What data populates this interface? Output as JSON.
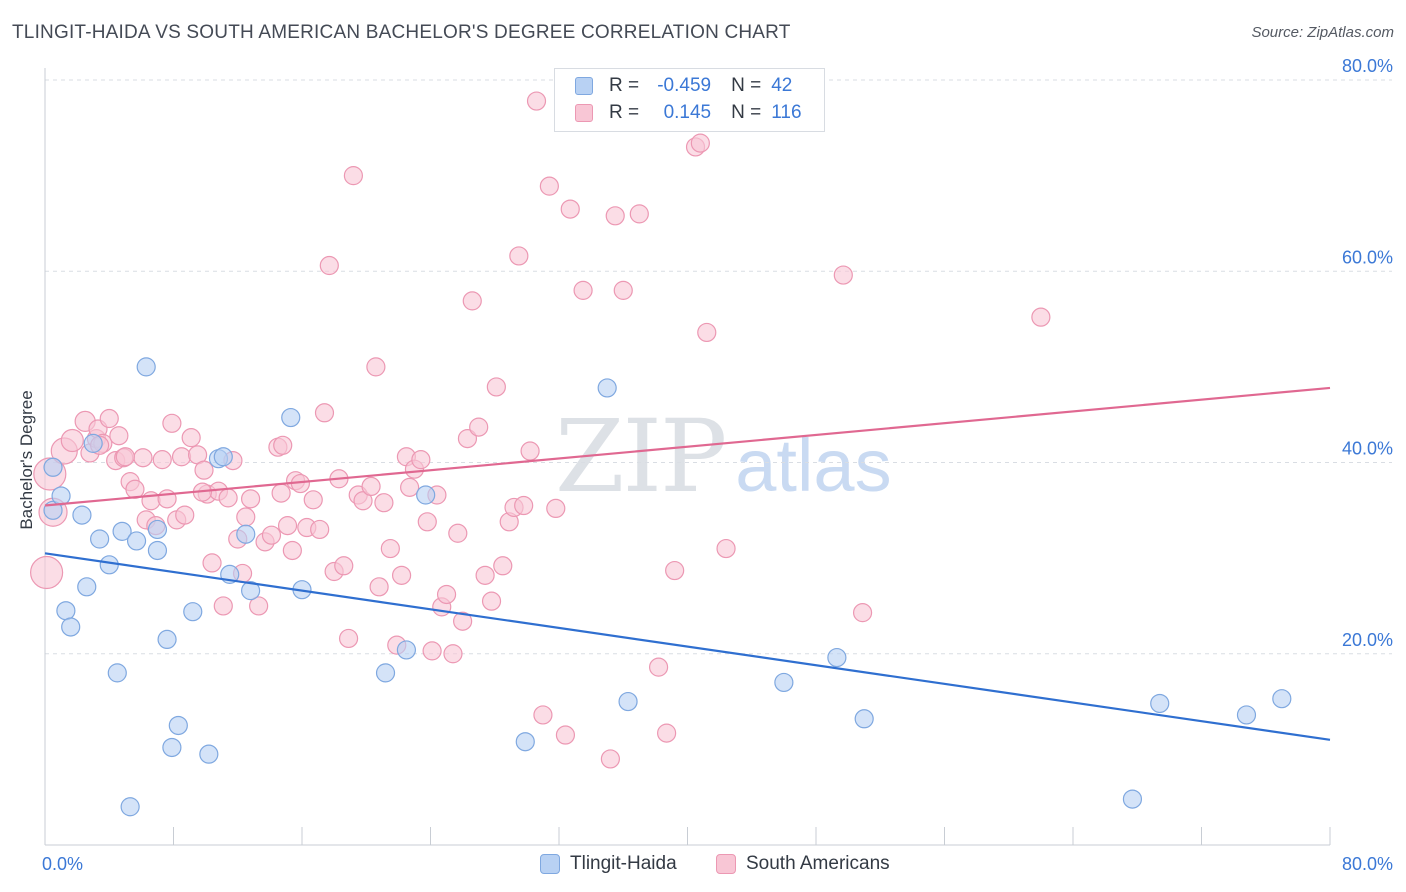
{
  "title": "TLINGIT-HAIDA VS SOUTH AMERICAN BACHELOR'S DEGREE CORRELATION CHART",
  "source": "Source: ZipAtlas.com",
  "watermark": {
    "zip": "ZIP",
    "atlas": "atlas"
  },
  "legend": {
    "r_label": "R =",
    "n_label": "N =",
    "rows": [
      {
        "r": "-0.459",
        "n": "42"
      },
      {
        "r": "0.145",
        "n": "116"
      }
    ]
  },
  "bottom_legend": [
    "Tlingit-Haida",
    "South Americans"
  ],
  "colors": {
    "blue_fill": "#b8d1f3",
    "blue_stroke": "#7fa8e0",
    "blue_line": "#2f6fd0",
    "pink_fill": "#f8c6d5",
    "pink_stroke": "#ec98b3",
    "pink_line": "#e06891",
    "axis_text": "#3b78d6",
    "grid": "#d9dde3"
  },
  "chart_data": {
    "type": "scatter",
    "title": "TLINGIT-HAIDA VS SOUTH AMERICAN BACHELOR'S DEGREE CORRELATION CHART",
    "ylabel": "Bachelor's Degree",
    "xlabel": "",
    "xlim": [
      0,
      80
    ],
    "ylim": [
      0,
      80
    ],
    "x_tick_labels": [
      "0.0%",
      "80.0%"
    ],
    "y_tick_labels": [
      "20.0%",
      "40.0%",
      "60.0%",
      "80.0%"
    ],
    "y_ticks": [
      20,
      40,
      60,
      80
    ],
    "grid": true,
    "series": [
      {
        "name": "Tlingit-Haida",
        "color": "#b8d1f3",
        "trend": {
          "x": [
            0,
            80
          ],
          "y": [
            30.5,
            11.0
          ]
        },
        "points": [
          [
            0.5,
            39.5,
            9
          ],
          [
            0.5,
            35.0,
            9
          ],
          [
            1.0,
            36.5,
            9
          ],
          [
            1.3,
            24.5,
            9
          ],
          [
            1.6,
            22.8,
            9
          ],
          [
            2.3,
            34.5,
            9
          ],
          [
            2.6,
            27.0,
            9
          ],
          [
            3.0,
            42.0,
            9
          ],
          [
            3.4,
            32.0,
            9
          ],
          [
            4.0,
            29.3,
            9
          ],
          [
            4.5,
            18.0,
            9
          ],
          [
            4.8,
            32.8,
            9
          ],
          [
            5.3,
            4.0,
            9
          ],
          [
            5.7,
            31.8,
            9
          ],
          [
            6.3,
            50.0,
            9
          ],
          [
            7.0,
            30.8,
            9
          ],
          [
            7.0,
            33.0,
            9
          ],
          [
            7.6,
            21.5,
            9
          ],
          [
            7.9,
            10.2,
            9
          ],
          [
            8.3,
            12.5,
            9
          ],
          [
            9.2,
            24.4,
            9
          ],
          [
            10.2,
            9.5,
            9
          ],
          [
            10.8,
            40.4,
            9
          ],
          [
            11.1,
            40.6,
            9
          ],
          [
            11.5,
            28.3,
            9
          ],
          [
            12.5,
            32.5,
            9
          ],
          [
            12.8,
            26.6,
            9
          ],
          [
            15.3,
            44.7,
            9
          ],
          [
            16.0,
            26.7,
            9
          ],
          [
            21.2,
            18.0,
            9
          ],
          [
            22.5,
            20.4,
            9
          ],
          [
            23.7,
            36.6,
            9
          ],
          [
            29.9,
            10.8,
            9
          ],
          [
            35.0,
            47.8,
            9
          ],
          [
            36.3,
            15.0,
            9
          ],
          [
            46.0,
            17.0,
            9
          ],
          [
            49.3,
            19.6,
            9
          ],
          [
            51.0,
            13.2,
            9
          ],
          [
            67.7,
            4.8,
            9
          ],
          [
            69.4,
            14.8,
            9
          ],
          [
            74.8,
            13.6,
            9
          ],
          [
            77.0,
            15.3,
            9
          ]
        ]
      },
      {
        "name": "South Americans",
        "color": "#f8c6d5",
        "trend": {
          "x": [
            0,
            80
          ],
          "y": [
            35.5,
            47.8
          ]
        },
        "points": [
          [
            0.1,
            28.5,
            16
          ],
          [
            0.3,
            38.8,
            16
          ],
          [
            0.5,
            34.8,
            14
          ],
          [
            1.2,
            41.2,
            13
          ],
          [
            1.7,
            42.3,
            11
          ],
          [
            2.5,
            44.3,
            10
          ],
          [
            2.8,
            41.0,
            9
          ],
          [
            3.2,
            42.5,
            9
          ],
          [
            3.3,
            43.5,
            9
          ],
          [
            3.6,
            42.0,
            9
          ],
          [
            4.0,
            44.6,
            9
          ],
          [
            4.4,
            40.2,
            9
          ],
          [
            4.6,
            42.8,
            9
          ],
          [
            4.9,
            40.5,
            9
          ],
          [
            5.3,
            38.0,
            9
          ],
          [
            5.6,
            37.2,
            9
          ],
          [
            6.1,
            40.5,
            9
          ],
          [
            6.3,
            34.0,
            9
          ],
          [
            6.6,
            36.0,
            9
          ],
          [
            6.9,
            33.4,
            9
          ],
          [
            7.3,
            40.3,
            9
          ],
          [
            7.6,
            36.2,
            9
          ],
          [
            7.9,
            44.1,
            9
          ],
          [
            8.2,
            34.0,
            9
          ],
          [
            8.5,
            40.6,
            9
          ],
          [
            8.7,
            34.5,
            9
          ],
          [
            9.1,
            42.6,
            9
          ],
          [
            9.5,
            40.8,
            9
          ],
          [
            9.9,
            39.2,
            9
          ],
          [
            10.1,
            36.7,
            9
          ],
          [
            10.4,
            29.5,
            9
          ],
          [
            10.8,
            37.0,
            9
          ],
          [
            11.1,
            25.0,
            9
          ],
          [
            11.4,
            36.3,
            9
          ],
          [
            11.7,
            40.2,
            9
          ],
          [
            12.0,
            32.0,
            9
          ],
          [
            12.3,
            28.4,
            9
          ],
          [
            12.5,
            34.3,
            9
          ],
          [
            12.8,
            36.2,
            9
          ],
          [
            13.3,
            25.0,
            9
          ],
          [
            13.7,
            31.7,
            9
          ],
          [
            14.1,
            32.4,
            9
          ],
          [
            14.5,
            41.6,
            9
          ],
          [
            14.8,
            41.8,
            9
          ],
          [
            15.1,
            33.4,
            9
          ],
          [
            15.4,
            30.8,
            9
          ],
          [
            15.6,
            38.1,
            9
          ],
          [
            15.9,
            37.8,
            9
          ],
          [
            16.3,
            33.2,
            9
          ],
          [
            16.7,
            36.1,
            9
          ],
          [
            17.1,
            33.0,
            9
          ],
          [
            17.4,
            45.2,
            9
          ],
          [
            17.7,
            60.6,
            9
          ],
          [
            18.0,
            28.6,
            9
          ],
          [
            18.3,
            38.3,
            9
          ],
          [
            18.6,
            29.2,
            9
          ],
          [
            18.9,
            21.6,
            9
          ],
          [
            19.2,
            70.0,
            9
          ],
          [
            19.5,
            36.6,
            9
          ],
          [
            19.8,
            36.0,
            9
          ],
          [
            20.3,
            37.5,
            9
          ],
          [
            20.6,
            50.0,
            9
          ],
          [
            20.8,
            27.0,
            9
          ],
          [
            21.1,
            35.8,
            9
          ],
          [
            21.5,
            31.0,
            9
          ],
          [
            21.9,
            20.9,
            9
          ],
          [
            22.2,
            28.2,
            9
          ],
          [
            22.5,
            40.6,
            9
          ],
          [
            22.7,
            37.4,
            9
          ],
          [
            23.0,
            39.3,
            9
          ],
          [
            23.4,
            40.3,
            9
          ],
          [
            23.8,
            33.8,
            9
          ],
          [
            24.1,
            20.3,
            9
          ],
          [
            24.4,
            36.6,
            9
          ],
          [
            24.7,
            24.9,
            9
          ],
          [
            25.0,
            26.2,
            9
          ],
          [
            25.4,
            20.0,
            9
          ],
          [
            25.7,
            32.6,
            9
          ],
          [
            26.0,
            23.4,
            9
          ],
          [
            26.3,
            42.5,
            9
          ],
          [
            26.6,
            56.9,
            9
          ],
          [
            27.0,
            43.7,
            9
          ],
          [
            27.4,
            28.2,
            9
          ],
          [
            27.8,
            25.5,
            9
          ],
          [
            28.1,
            47.9,
            9
          ],
          [
            28.5,
            29.2,
            9
          ],
          [
            28.9,
            33.8,
            9
          ],
          [
            29.2,
            35.3,
            9
          ],
          [
            29.5,
            61.6,
            9
          ],
          [
            29.8,
            35.5,
            9
          ],
          [
            30.2,
            41.2,
            9
          ],
          [
            30.6,
            77.8,
            9
          ],
          [
            31.0,
            13.6,
            9
          ],
          [
            31.4,
            68.9,
            9
          ],
          [
            31.8,
            35.2,
            9
          ],
          [
            32.4,
            11.5,
            9
          ],
          [
            32.7,
            66.5,
            9
          ],
          [
            33.5,
            58.0,
            9
          ],
          [
            35.2,
            9.0,
            9
          ],
          [
            35.5,
            65.8,
            9
          ],
          [
            36.0,
            58.0,
            9
          ],
          [
            37.0,
            66.0,
            9
          ],
          [
            38.2,
            18.6,
            9
          ],
          [
            38.7,
            11.7,
            9
          ],
          [
            39.2,
            28.7,
            9
          ],
          [
            40.5,
            73.0,
            9
          ],
          [
            40.8,
            73.4,
            9
          ],
          [
            41.2,
            53.6,
            9
          ],
          [
            42.4,
            31.0,
            9
          ],
          [
            49.7,
            59.6,
            9
          ],
          [
            50.9,
            24.3,
            9
          ],
          [
            62.0,
            55.2,
            9
          ],
          [
            3.4,
            41.8,
            9
          ],
          [
            5.0,
            40.6,
            9
          ],
          [
            9.8,
            36.9,
            9
          ],
          [
            14.7,
            36.8,
            9
          ]
        ]
      }
    ]
  }
}
